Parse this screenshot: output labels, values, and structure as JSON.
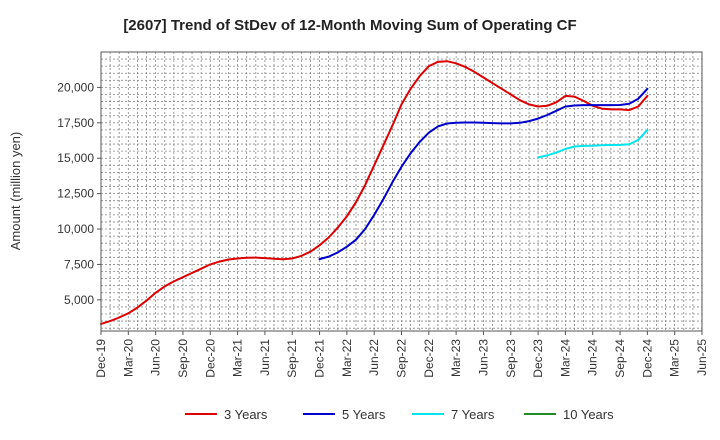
{
  "chart_data": {
    "type": "line",
    "title": "[2607]  Trend of StDev of 12-Month Moving Sum of Operating CF",
    "xlabel": "",
    "ylabel": "Amount (million yen)",
    "ylim": [
      2800,
      22500
    ],
    "yticks": [
      5000,
      7500,
      10000,
      12500,
      15000,
      17500,
      20000
    ],
    "ytick_labels": [
      "5,000",
      "7,500",
      "10,000",
      "12,500",
      "15,000",
      "17,500",
      "20,000"
    ],
    "xlim": [
      0,
      66
    ],
    "xticks": [
      0,
      3,
      6,
      9,
      12,
      15,
      18,
      21,
      24,
      27,
      30,
      33,
      36,
      39,
      42,
      45,
      48,
      51,
      54,
      57,
      60,
      63,
      66
    ],
    "xtick_labels": [
      "Dec-19",
      "Mar-20",
      "Jun-20",
      "Sep-20",
      "Dec-20",
      "Mar-21",
      "Jun-21",
      "Sep-21",
      "Dec-21",
      "Mar-22",
      "Jun-22",
      "Sep-22",
      "Dec-22",
      "Mar-23",
      "Jun-23",
      "Sep-23",
      "Dec-23",
      "Mar-24",
      "Jun-24",
      "Sep-24",
      "Dec-24",
      "Mar-25",
      "Jun-25"
    ],
    "grid": true,
    "legend_position": "bottom",
    "series": [
      {
        "name": "3 Years",
        "color": "#dd0000",
        "points": [
          [
            0,
            3300
          ],
          [
            1,
            3500
          ],
          [
            2,
            3750
          ],
          [
            3,
            4050
          ],
          [
            4,
            4450
          ],
          [
            5,
            4950
          ],
          [
            6,
            5500
          ],
          [
            7,
            5950
          ],
          [
            8,
            6300
          ],
          [
            9,
            6600
          ],
          [
            10,
            6900
          ],
          [
            11,
            7200
          ],
          [
            12,
            7500
          ],
          [
            13,
            7700
          ],
          [
            14,
            7850
          ],
          [
            15,
            7920
          ],
          [
            16,
            7970
          ],
          [
            17,
            7980
          ],
          [
            18,
            7950
          ],
          [
            19,
            7900
          ],
          [
            20,
            7870
          ],
          [
            21,
            7920
          ],
          [
            22,
            8100
          ],
          [
            23,
            8400
          ],
          [
            24,
            8850
          ],
          [
            25,
            9400
          ],
          [
            26,
            10100
          ],
          [
            27,
            10900
          ],
          [
            28,
            11900
          ],
          [
            29,
            13100
          ],
          [
            30,
            14500
          ],
          [
            31,
            15900
          ],
          [
            32,
            17300
          ],
          [
            33,
            18800
          ],
          [
            34,
            19900
          ],
          [
            35,
            20800
          ],
          [
            36,
            21500
          ],
          [
            37,
            21800
          ],
          [
            38,
            21850
          ],
          [
            39,
            21700
          ],
          [
            40,
            21450
          ],
          [
            41,
            21100
          ],
          [
            42,
            20700
          ],
          [
            43,
            20300
          ],
          [
            44,
            19900
          ],
          [
            45,
            19500
          ],
          [
            46,
            19100
          ],
          [
            47,
            18800
          ],
          [
            48,
            18650
          ],
          [
            49,
            18700
          ],
          [
            50,
            18950
          ],
          [
            51,
            19400
          ],
          [
            52,
            19350
          ],
          [
            53,
            19050
          ],
          [
            54,
            18700
          ],
          [
            55,
            18500
          ],
          [
            56,
            18450
          ],
          [
            57,
            18450
          ],
          [
            58,
            18400
          ],
          [
            59,
            18650
          ],
          [
            60,
            19400
          ]
        ]
      },
      {
        "name": "5 Years",
        "color": "#0000cc",
        "points": [
          [
            24,
            7880
          ],
          [
            25,
            8050
          ],
          [
            26,
            8350
          ],
          [
            27,
            8750
          ],
          [
            28,
            9250
          ],
          [
            29,
            10000
          ],
          [
            30,
            11000
          ],
          [
            31,
            12100
          ],
          [
            32,
            13300
          ],
          [
            33,
            14400
          ],
          [
            34,
            15350
          ],
          [
            35,
            16150
          ],
          [
            36,
            16800
          ],
          [
            37,
            17250
          ],
          [
            38,
            17450
          ],
          [
            39,
            17500
          ],
          [
            40,
            17520
          ],
          [
            41,
            17520
          ],
          [
            42,
            17500
          ],
          [
            43,
            17480
          ],
          [
            44,
            17460
          ],
          [
            45,
            17460
          ],
          [
            46,
            17500
          ],
          [
            47,
            17620
          ],
          [
            48,
            17800
          ],
          [
            49,
            18050
          ],
          [
            50,
            18350
          ],
          [
            51,
            18650
          ],
          [
            52,
            18720
          ],
          [
            53,
            18750
          ],
          [
            54,
            18750
          ],
          [
            55,
            18750
          ],
          [
            56,
            18750
          ],
          [
            57,
            18760
          ],
          [
            58,
            18850
          ],
          [
            59,
            19200
          ],
          [
            60,
            19900
          ]
        ]
      },
      {
        "name": "7 Years",
        "color": "#00e5ee",
        "points": [
          [
            48,
            15050
          ],
          [
            49,
            15200
          ],
          [
            50,
            15400
          ],
          [
            51,
            15650
          ],
          [
            52,
            15830
          ],
          [
            53,
            15870
          ],
          [
            54,
            15880
          ],
          [
            55,
            15920
          ],
          [
            56,
            15930
          ],
          [
            57,
            15940
          ],
          [
            58,
            15980
          ],
          [
            59,
            16300
          ],
          [
            60,
            17000
          ]
        ]
      },
      {
        "name": "10 Years",
        "color": "#228b22",
        "points": []
      }
    ]
  }
}
